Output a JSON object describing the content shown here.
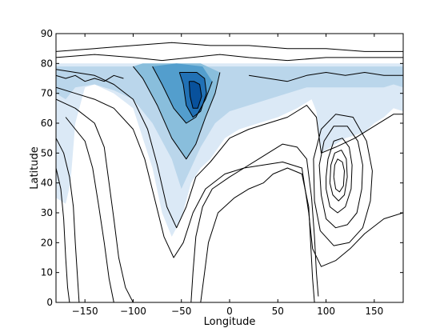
{
  "chart_data": {
    "type": "contour",
    "title": "",
    "xlabel": "Longitude",
    "ylabel": "Latitude",
    "xlim": [
      -180,
      180
    ],
    "ylim": [
      0,
      90
    ],
    "xticks": [
      -150,
      -100,
      -50,
      0,
      50,
      100,
      150
    ],
    "yticks": [
      0,
      10,
      20,
      30,
      40,
      50,
      60,
      70,
      80,
      90
    ],
    "xtick_labels": [
      "−150",
      "−100",
      "−50",
      "0",
      "50",
      "100",
      "150"
    ],
    "ytick_labels": [
      "0",
      "10",
      "20",
      "30",
      "40",
      "50",
      "60",
      "70",
      "80",
      "90"
    ],
    "grid": false,
    "colormap": "Blues",
    "fill_colors": [
      "#ffffff",
      "#dbe9f6",
      "#bad6eb",
      "#89bedc",
      "#539ecd",
      "#2171b5",
      "#08519c"
    ],
    "line_color": "#000000",
    "filled_regions": [
      {
        "level": 1,
        "points": [
          [
            -180,
            80
          ],
          [
            -180,
            35
          ],
          [
            -170,
            33
          ],
          [
            -165,
            40
          ],
          [
            -160,
            60
          ],
          [
            -150,
            72
          ],
          [
            -140,
            73
          ],
          [
            -120,
            70
          ],
          [
            -100,
            65
          ],
          [
            -90,
            55
          ],
          [
            -80,
            45
          ],
          [
            -70,
            30
          ],
          [
            -60,
            22
          ],
          [
            -50,
            28
          ],
          [
            -40,
            40
          ],
          [
            -30,
            45
          ],
          [
            -20,
            48
          ],
          [
            -5,
            55
          ],
          [
            10,
            58
          ],
          [
            30,
            60
          ],
          [
            50,
            62
          ],
          [
            70,
            65
          ],
          [
            85,
            68
          ],
          [
            90,
            64
          ],
          [
            95,
            50
          ],
          [
            105,
            52
          ],
          [
            120,
            55
          ],
          [
            140,
            57
          ],
          [
            150,
            60
          ],
          [
            160,
            62
          ],
          [
            170,
            65
          ],
          [
            180,
            64
          ],
          [
            180,
            80
          ]
        ]
      },
      {
        "level": 2,
        "points": [
          [
            -180,
            79
          ],
          [
            -180,
            70
          ],
          [
            -170,
            68
          ],
          [
            -160,
            72
          ],
          [
            -140,
            73
          ],
          [
            -120,
            71
          ],
          [
            -100,
            68
          ],
          [
            -80,
            60
          ],
          [
            -60,
            48
          ],
          [
            -50,
            38
          ],
          [
            -40,
            45
          ],
          [
            -30,
            52
          ],
          [
            -15,
            60
          ],
          [
            0,
            64
          ],
          [
            20,
            66
          ],
          [
            50,
            69
          ],
          [
            80,
            72
          ],
          [
            100,
            72
          ],
          [
            120,
            72
          ],
          [
            140,
            72
          ],
          [
            160,
            72
          ],
          [
            170,
            73
          ],
          [
            180,
            72
          ],
          [
            180,
            79
          ]
        ]
      },
      {
        "level": 3,
        "points": [
          [
            -100,
            79
          ],
          [
            -90,
            75
          ],
          [
            -75,
            66
          ],
          [
            -60,
            55
          ],
          [
            -45,
            48
          ],
          [
            -35,
            53
          ],
          [
            -25,
            62
          ],
          [
            -15,
            70
          ],
          [
            -10,
            77
          ],
          [
            -30,
            80
          ],
          [
            -60,
            80
          ],
          [
            -90,
            80
          ]
        ]
      },
      {
        "level": 4,
        "points": [
          [
            -80,
            79
          ],
          [
            -70,
            73
          ],
          [
            -58,
            65
          ],
          [
            -45,
            60
          ],
          [
            -35,
            62
          ],
          [
            -25,
            68
          ],
          [
            -18,
            74
          ],
          [
            -28,
            79
          ],
          [
            -55,
            80
          ]
        ]
      },
      {
        "level": 5,
        "points": [
          [
            -52,
            77
          ],
          [
            -48,
            73
          ],
          [
            -45,
            66
          ],
          [
            -38,
            62
          ],
          [
            -30,
            64
          ],
          [
            -24,
            70
          ],
          [
            -26,
            75
          ],
          [
            -34,
            77
          ],
          [
            -45,
            77
          ]
        ]
      },
      {
        "level": 6,
        "points": [
          [
            -42,
            74
          ],
          [
            -41,
            69
          ],
          [
            -38,
            65
          ],
          [
            -33,
            65
          ],
          [
            -29,
            69
          ],
          [
            -31,
            73
          ],
          [
            -37,
            74
          ]
        ]
      }
    ],
    "contour_lines": [
      [
        [
          -180,
          84
        ],
        [
          -140,
          85
        ],
        [
          -100,
          86
        ],
        [
          -60,
          87
        ],
        [
          -20,
          86
        ],
        [
          20,
          86
        ],
        [
          60,
          85
        ],
        [
          100,
          85
        ],
        [
          140,
          84
        ],
        [
          180,
          84
        ]
      ],
      [
        [
          -180,
          82
        ],
        [
          -140,
          83
        ],
        [
          -100,
          82
        ],
        [
          -70,
          81
        ],
        [
          -40,
          82
        ],
        [
          -10,
          83
        ],
        [
          20,
          82
        ],
        [
          60,
          81
        ],
        [
          100,
          82
        ],
        [
          140,
          82
        ],
        [
          180,
          82
        ]
      ],
      [
        [
          -180,
          78
        ],
        [
          -160,
          77
        ],
        [
          -140,
          76
        ],
        [
          -120,
          73
        ],
        [
          -100,
          68
        ],
        [
          -85,
          58
        ],
        [
          -75,
          46
        ],
        [
          -65,
          32
        ],
        [
          -55,
          25
        ],
        [
          -45,
          32
        ],
        [
          -35,
          42
        ],
        [
          -20,
          47
        ],
        [
          0,
          55
        ],
        [
          20,
          58
        ],
        [
          40,
          60
        ],
        [
          60,
          62
        ],
        [
          80,
          66
        ],
        [
          90,
          62
        ],
        [
          95,
          50
        ],
        [
          110,
          52
        ],
        [
          130,
          55
        ],
        [
          150,
          59
        ],
        [
          170,
          63
        ],
        [
          180,
          63
        ]
      ],
      [
        [
          -180,
          72
        ],
        [
          -160,
          70
        ],
        [
          -140,
          68
        ],
        [
          -120,
          65
        ],
        [
          -100,
          58
        ],
        [
          -88,
          48
        ],
        [
          -78,
          35
        ],
        [
          -68,
          22
        ],
        [
          -58,
          15
        ],
        [
          -48,
          20
        ],
        [
          -38,
          30
        ],
        [
          -25,
          38
        ],
        [
          -5,
          43
        ],
        [
          15,
          45
        ],
        [
          35,
          46
        ],
        [
          55,
          47
        ],
        [
          75,
          45
        ],
        [
          82,
          30
        ],
        [
          86,
          18
        ],
        [
          95,
          12
        ],
        [
          110,
          14
        ],
        [
          125,
          18
        ],
        [
          140,
          23
        ],
        [
          160,
          28
        ],
        [
          180,
          30
        ]
      ],
      [
        [
          -180,
          68
        ],
        [
          -160,
          65
        ],
        [
          -140,
          60
        ],
        [
          -130,
          52
        ],
        [
          -125,
          40
        ],
        [
          -120,
          28
        ],
        [
          -115,
          15
        ],
        [
          -108,
          5
        ],
        [
          -100,
          0
        ]
      ],
      [
        [
          -170,
          62
        ],
        [
          -160,
          58
        ],
        [
          -150,
          54
        ],
        [
          -142,
          45
        ],
        [
          -136,
          33
        ],
        [
          -130,
          20
        ],
        [
          -125,
          8
        ],
        [
          -120,
          0
        ]
      ],
      [
        [
          -180,
          55
        ],
        [
          -172,
          50
        ],
        [
          -166,
          42
        ],
        [
          -162,
          32
        ],
        [
          -160,
          20
        ],
        [
          -158,
          10
        ],
        [
          -156,
          0
        ]
      ],
      [
        [
          -180,
          45
        ],
        [
          -175,
          38
        ],
        [
          -172,
          28
        ],
        [
          -170,
          15
        ],
        [
          -168,
          5
        ],
        [
          -166,
          0
        ]
      ],
      [
        [
          -40,
          0
        ],
        [
          -38,
          10
        ],
        [
          -35,
          22
        ],
        [
          -28,
          32
        ],
        [
          -18,
          38
        ],
        [
          0,
          42
        ],
        [
          15,
          45
        ],
        [
          30,
          48
        ],
        [
          40,
          50
        ],
        [
          55,
          53
        ],
        [
          70,
          52
        ],
        [
          80,
          48
        ],
        [
          85,
          35
        ],
        [
          88,
          22
        ],
        [
          90,
          10
        ],
        [
          92,
          2
        ]
      ],
      [
        [
          -30,
          0
        ],
        [
          -26,
          10
        ],
        [
          -22,
          20
        ],
        [
          -12,
          30
        ],
        [
          5,
          35
        ],
        [
          20,
          38
        ],
        [
          35,
          40
        ],
        [
          45,
          43
        ],
        [
          60,
          45
        ],
        [
          75,
          43
        ],
        [
          82,
          32
        ],
        [
          84,
          20
        ],
        [
          86,
          8
        ],
        [
          88,
          0
        ]
      ],
      [
        [
          100,
          38
        ],
        [
          104,
          32
        ],
        [
          112,
          30
        ],
        [
          120,
          32
        ],
        [
          126,
          38
        ],
        [
          127,
          46
        ],
        [
          124,
          52
        ],
        [
          117,
          55
        ],
        [
          108,
          54
        ],
        [
          102,
          48
        ],
        [
          100,
          42
        ],
        [
          100,
          38
        ]
      ],
      [
        [
          104,
          40
        ],
        [
          107,
          36
        ],
        [
          113,
          34
        ],
        [
          119,
          36
        ],
        [
          122,
          42
        ],
        [
          121,
          48
        ],
        [
          116,
          51
        ],
        [
          109,
          50
        ],
        [
          105,
          46
        ],
        [
          104,
          40
        ]
      ],
      [
        [
          108,
          42
        ],
        [
          110,
          38
        ],
        [
          114,
          37
        ],
        [
          118,
          39
        ],
        [
          119,
          44
        ],
        [
          117,
          47
        ],
        [
          112,
          48
        ],
        [
          109,
          46
        ],
        [
          108,
          42
        ]
      ],
      [
        [
          95,
          36
        ],
        [
          100,
          28
        ],
        [
          110,
          25
        ],
        [
          122,
          26
        ],
        [
          132,
          30
        ],
        [
          137,
          38
        ],
        [
          138,
          46
        ],
        [
          133,
          54
        ],
        [
          122,
          59
        ],
        [
          108,
          59
        ],
        [
          98,
          54
        ],
        [
          93,
          46
        ],
        [
          95,
          36
        ]
      ],
      [
        [
          88,
          34
        ],
        [
          94,
          24
        ],
        [
          108,
          19
        ],
        [
          124,
          20
        ],
        [
          138,
          25
        ],
        [
          146,
          34
        ],
        [
          148,
          44
        ],
        [
          142,
          54
        ],
        [
          128,
          62
        ],
        [
          110,
          63
        ],
        [
          95,
          58
        ],
        [
          87,
          48
        ],
        [
          88,
          34
        ]
      ],
      [
        [
          -100,
          79
        ],
        [
          -90,
          75
        ],
        [
          -75,
          66
        ],
        [
          -60,
          55
        ],
        [
          -45,
          48
        ],
        [
          -35,
          53
        ],
        [
          -25,
          62
        ],
        [
          -15,
          70
        ],
        [
          -10,
          77
        ]
      ],
      [
        [
          -80,
          79
        ],
        [
          -70,
          73
        ],
        [
          -58,
          65
        ],
        [
          -45,
          60
        ],
        [
          -35,
          62
        ],
        [
          -25,
          68
        ],
        [
          -18,
          74
        ]
      ],
      [
        [
          -52,
          77
        ],
        [
          -48,
          73
        ],
        [
          -45,
          66
        ],
        [
          -38,
          62
        ],
        [
          -30,
          64
        ],
        [
          -24,
          70
        ],
        [
          -26,
          75
        ],
        [
          -34,
          77
        ],
        [
          -45,
          77
        ],
        [
          -52,
          77
        ]
      ],
      [
        [
          -42,
          74
        ],
        [
          -41,
          69
        ],
        [
          -38,
          65
        ],
        [
          -33,
          65
        ],
        [
          -29,
          69
        ],
        [
          -31,
          73
        ],
        [
          -37,
          74
        ],
        [
          -42,
          74
        ]
      ],
      [
        [
          -180,
          76
        ],
        [
          -170,
          75
        ],
        [
          -160,
          76
        ],
        [
          -150,
          74
        ],
        [
          -140,
          75
        ],
        [
          -130,
          74
        ],
        [
          -120,
          76
        ],
        [
          -110,
          75
        ]
      ],
      [
        [
          20,
          76
        ],
        [
          40,
          75
        ],
        [
          60,
          74
        ],
        [
          80,
          76
        ],
        [
          100,
          77
        ],
        [
          120,
          76
        ],
        [
          140,
          77
        ],
        [
          160,
          76
        ],
        [
          180,
          76
        ]
      ]
    ]
  }
}
